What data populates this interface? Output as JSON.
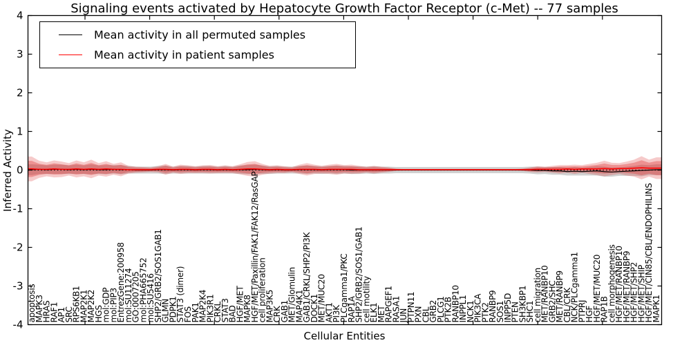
{
  "title": "Signaling events activated by Hepatocyte Growth Factor Receptor (c-Met) -- 77 samples",
  "legend": {
    "items": [
      {
        "label": "Mean activity in all permuted samples",
        "color": "#000000"
      },
      {
        "label": "Mean activity in patient samples",
        "color": "#ff0000"
      }
    ]
  },
  "axes": {
    "ylabel": "Inferred Activity",
    "xlabel": "Cellular Entities",
    "yticks": [
      "4",
      "3",
      "2",
      "1",
      "0",
      "-1",
      "-2",
      "-3",
      "-4"
    ],
    "ylim": [
      -4,
      4
    ]
  },
  "chart_data": {
    "type": "line",
    "title": "Signaling events activated by Hepatocyte Growth Factor Receptor (c-Met) -- 77 samples",
    "xlabel": "Cellular Entities",
    "ylabel": "Inferred Activity",
    "ylim": [
      -4,
      4
    ],
    "grid": false,
    "legend_position": "upper left",
    "zero_line": {
      "value": 0,
      "style": "dotted",
      "color": "#000000"
    },
    "categories": [
      "apoptosis",
      "MAPK3",
      "HRAS",
      "RAF1",
      "AP1",
      "SRC",
      "RPS6KB1",
      "MAP2K1",
      "MAP2K2",
      "HGS",
      "mol:GDP",
      "mol:PIP3",
      "EntrezGene:200958",
      "mol:SU11274",
      "GO:0007205",
      "mol:PHA665752",
      "mol:SU5416",
      "SHP2/GRB2/SOS1GAB1",
      "GLMN",
      "PDPK1",
      "STAT3 (dimer)",
      "FOS",
      "PAK1",
      "MAP2K4",
      "PIK3R1",
      "CRKL",
      "STAT3",
      "BAD",
      "HGF/MET",
      "MAPK8",
      "HGF/MET/Paxillin/FAK1/FAK12/RasGAP",
      "cell proliferation",
      "MAP3K5",
      "CRK",
      "GAB1",
      "MET/Glomulin",
      "MAP4K1",
      "GAB1/CRKL/SHP2/PI3K",
      "DOCK1",
      "MET/MUC20",
      "AKT1",
      "PI3K",
      "PLCgamma1/PKC",
      "RAP1A",
      "SHP2/GRB2/SOS1/GAB1",
      "cell motility",
      "ELK1",
      "MET",
      "RAPGEF1",
      "RASA1",
      "JUN",
      "PTPN11",
      "PXN",
      "CBL",
      "GRB2",
      "PLCG1",
      "PTK2B",
      "RANBP10",
      "INPPL1",
      "NCK1",
      "PIK3CA",
      "PTK2",
      "RANBP9",
      "SOS1",
      "INPP5D",
      "PTEN",
      "SH3KBP1",
      "SHC1",
      "cell migration",
      "MET/RANBP10",
      "GRB2/SHC",
      "MET/RANBP9",
      "CBL/CRK",
      "NCK/PLCgamma1",
      "PTPRJ",
      "HGF",
      "HGF/MET/MUC20",
      "RAP1B",
      "cell morphogenesis",
      "HGF/MET/RANBP10",
      "HGF/MET/RANBP9",
      "HGF/MET/SHP2",
      "HGF/MET/SHIP",
      "HGF/MET/CIN85/CBL/ENDOPHILINS",
      "MAPK1"
    ],
    "series": [
      {
        "name": "Mean activity in all permuted samples",
        "color": "#000000",
        "line_width": 1.2,
        "values": [
          0.01,
          0.02,
          0.01,
          0.02,
          0.02,
          0.01,
          0.02,
          0.01,
          0.02,
          0.01,
          0.01,
          0.02,
          0.01,
          0.01,
          0.0,
          0.0,
          0.0,
          0.01,
          0.01,
          0.0,
          0.01,
          0.01,
          0.0,
          0.01,
          0.01,
          0.0,
          0.01,
          0.0,
          0.01,
          0.01,
          0.02,
          0.01,
          0.0,
          0.01,
          0.0,
          0.0,
          0.01,
          0.01,
          0.01,
          0.0,
          0.01,
          0.01,
          0.01,
          0.0,
          0.0,
          0.0,
          0.0,
          0.0,
          0.0,
          0.0,
          0.0,
          0.0,
          0.0,
          0.0,
          0.0,
          0.0,
          0.0,
          0.0,
          0.0,
          0.0,
          0.0,
          0.0,
          0.0,
          0.0,
          0.0,
          0.0,
          0.0,
          0.0,
          -0.01,
          -0.01,
          -0.02,
          -0.02,
          -0.04,
          -0.03,
          -0.04,
          -0.03,
          -0.02,
          -0.04,
          -0.05,
          -0.04,
          -0.03,
          -0.02,
          -0.01,
          0.0,
          0.01
        ],
        "band_half_widths": [
          0.14,
          0.12,
          0.11,
          0.12,
          0.12,
          0.11,
          0.12,
          0.11,
          0.13,
          0.11,
          0.12,
          0.11,
          0.12,
          0.1,
          0.09,
          0.09,
          0.09,
          0.1,
          0.11,
          0.09,
          0.1,
          0.1,
          0.09,
          0.1,
          0.1,
          0.09,
          0.1,
          0.09,
          0.11,
          0.12,
          0.12,
          0.11,
          0.1,
          0.1,
          0.09,
          0.09,
          0.1,
          0.11,
          0.1,
          0.1,
          0.1,
          0.11,
          0.1,
          0.1,
          0.1,
          0.09,
          0.1,
          0.09,
          0.09,
          0.08,
          0.08,
          0.08,
          0.08,
          0.08,
          0.08,
          0.08,
          0.08,
          0.08,
          0.08,
          0.08,
          0.08,
          0.08,
          0.08,
          0.08,
          0.08,
          0.08,
          0.08,
          0.09,
          0.1,
          0.09,
          0.1,
          0.1,
          0.1,
          0.11,
          0.1,
          0.11,
          0.12,
          0.13,
          0.12,
          0.11,
          0.12,
          0.13,
          0.15,
          0.13,
          0.14
        ],
        "band_color": "#999999",
        "band_opacity": 0.45
      },
      {
        "name": "Mean activity in patient samples",
        "color": "#ff0000",
        "line_width": 1.6,
        "values": [
          0.03,
          0.02,
          0.02,
          0.03,
          0.02,
          0.02,
          0.03,
          0.02,
          0.03,
          0.02,
          0.03,
          0.02,
          0.02,
          0.01,
          0.01,
          0.01,
          0.01,
          0.02,
          0.02,
          0.01,
          0.02,
          0.02,
          0.01,
          0.02,
          0.02,
          0.01,
          0.02,
          0.01,
          0.02,
          0.03,
          0.03,
          0.02,
          0.01,
          0.02,
          0.01,
          0.01,
          0.02,
          0.02,
          0.02,
          0.01,
          0.02,
          0.02,
          0.02,
          0.02,
          0.01,
          0.01,
          0.01,
          0.01,
          0.01,
          0.01,
          0.01,
          0.01,
          0.01,
          0.01,
          0.01,
          0.01,
          0.01,
          0.01,
          0.01,
          0.01,
          0.01,
          0.01,
          0.01,
          0.01,
          0.01,
          0.01,
          0.01,
          0.01,
          0.02,
          0.02,
          0.02,
          0.02,
          0.03,
          0.02,
          0.03,
          0.03,
          0.03,
          0.04,
          0.03,
          0.04,
          0.04,
          0.05,
          0.06,
          0.05,
          0.05
        ],
        "band_half_widths": [
          0.32,
          0.22,
          0.18,
          0.22,
          0.2,
          0.16,
          0.22,
          0.18,
          0.24,
          0.16,
          0.2,
          0.14,
          0.18,
          0.1,
          0.08,
          0.07,
          0.06,
          0.08,
          0.14,
          0.08,
          0.12,
          0.1,
          0.09,
          0.1,
          0.11,
          0.09,
          0.1,
          0.09,
          0.13,
          0.18,
          0.2,
          0.14,
          0.1,
          0.1,
          0.09,
          0.07,
          0.12,
          0.16,
          0.12,
          0.1,
          0.12,
          0.14,
          0.11,
          0.12,
          0.1,
          0.08,
          0.1,
          0.08,
          0.06,
          0.03,
          0.02,
          0.02,
          0.02,
          0.02,
          0.02,
          0.02,
          0.02,
          0.02,
          0.02,
          0.02,
          0.02,
          0.02,
          0.02,
          0.02,
          0.02,
          0.02,
          0.03,
          0.06,
          0.08,
          0.07,
          0.09,
          0.11,
          0.1,
          0.12,
          0.1,
          0.13,
          0.16,
          0.2,
          0.16,
          0.14,
          0.18,
          0.22,
          0.3,
          0.22,
          0.28
        ],
        "band_color": "#dd2b2b",
        "band_opacity": 0.25,
        "band_inner_scale": 0.65,
        "band_inner_opacity": 0.35
      }
    ]
  }
}
